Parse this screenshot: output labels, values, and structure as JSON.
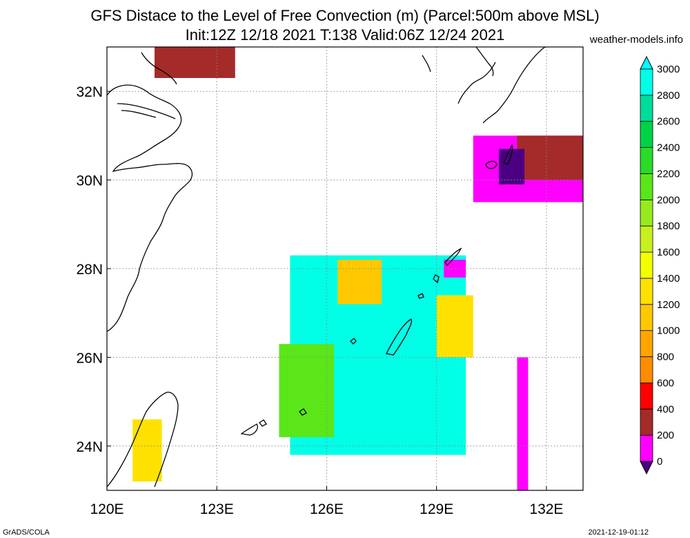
{
  "header": {
    "title_line1": "GFS Distace to the Level of Free Convection (m) (Parcel:500m above MSL)",
    "title_line2": "Init:12Z 12/18 2021 T:138 Valid:06Z 12/24 2021",
    "site": "weather-models.info"
  },
  "footer": {
    "left": "GrADS/COLA",
    "right": "2021-12-19-01:12"
  },
  "chart_data": {
    "type": "heatmap",
    "title": "GFS Distace to the Level of Free Convection (m) (Parcel:500m above MSL)",
    "subtitle": "Init:12Z 12/18 2021 T:138 Valid:06Z 12/24 2021",
    "units": "m",
    "xlim": [
      120,
      133
    ],
    "ylim": [
      23,
      33
    ],
    "x_ticks": [
      "120E",
      "123E",
      "126E",
      "129E",
      "132E"
    ],
    "x_tick_values": [
      120,
      123,
      126,
      129,
      132
    ],
    "y_ticks": [
      "24N",
      "26N",
      "28N",
      "30N",
      "32N"
    ],
    "y_tick_values": [
      24,
      26,
      28,
      30,
      32
    ],
    "grid": true,
    "colorbar": {
      "levels": [
        0,
        200,
        400,
        600,
        800,
        1000,
        1200,
        1400,
        1600,
        1800,
        2000,
        2200,
        2400,
        2600,
        2800,
        3000
      ],
      "labels": [
        "0",
        "200",
        "400",
        "600",
        "800",
        "1000",
        "1200",
        "1400",
        "1600",
        "1800",
        "2000",
        "2200",
        "2400",
        "2600",
        "2800",
        "3000"
      ],
      "colors": [
        "#4b0082",
        "#ff00ff",
        "#a52a2a",
        "#ff0000",
        "#ff8c00",
        "#ffa500",
        "#ffc800",
        "#ffe100",
        "#f5ff00",
        "#c8f01e",
        "#96eb1e",
        "#5ae619",
        "#28dc28",
        "#00d246",
        "#00dc9a",
        "#00ffe6",
        "#00ffff"
      ]
    },
    "regions": [
      {
        "name": "okinawa-plume",
        "lon": [
          125.0,
          129.8
        ],
        "lat": [
          23.8,
          28.3
        ],
        "level": 3000
      },
      {
        "name": "okinawa-west",
        "lon": [
          124.7,
          126.2
        ],
        "lat": [
          24.2,
          26.3
        ],
        "level": 2200
      },
      {
        "name": "okinawa-north-edge",
        "lon": [
          126.3,
          127.5
        ],
        "lat": [
          27.2,
          28.2
        ],
        "level": 1200
      },
      {
        "name": "okinawa-east-edge",
        "lon": [
          129.0,
          130.0
        ],
        "lat": [
          26.0,
          27.4
        ],
        "level": 1400
      },
      {
        "name": "amami-strip",
        "lon": [
          129.2,
          129.8
        ],
        "lat": [
          27.8,
          28.2
        ],
        "level": 200
      },
      {
        "name": "kyushu-south",
        "lon": [
          130.0,
          133.0
        ],
        "lat": [
          29.5,
          31.0
        ],
        "level": 200
      },
      {
        "name": "kyushu-south-brown",
        "lon": [
          131.2,
          133.0
        ],
        "lat": [
          30.0,
          31.0
        ],
        "level": 400
      },
      {
        "name": "kyushu-south-purple",
        "lon": [
          130.7,
          131.4
        ],
        "lat": [
          29.9,
          30.7
        ],
        "level": 0
      },
      {
        "name": "north-strip",
        "lon": [
          121.3,
          123.5
        ],
        "lat": [
          32.3,
          33.0
        ],
        "level": 400
      },
      {
        "name": "taiwan-east",
        "lon": [
          120.7,
          121.5
        ],
        "lat": [
          23.2,
          24.6
        ],
        "level": 1400
      },
      {
        "name": "east-strip",
        "lon": [
          131.2,
          131.5
        ],
        "lat": [
          23.0,
          26.0
        ],
        "level": 200
      }
    ]
  }
}
